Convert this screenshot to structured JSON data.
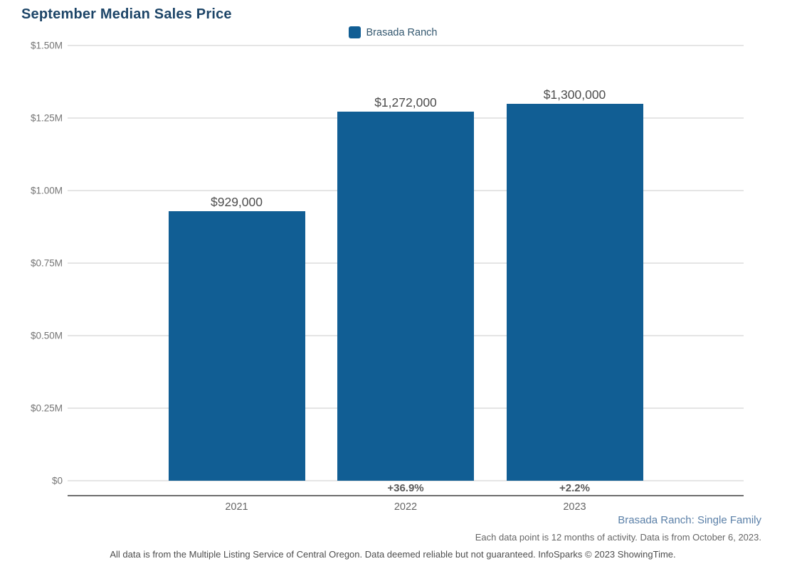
{
  "title": "September Median Sales Price",
  "legend": {
    "label": "Brasada Ranch"
  },
  "chart_data": {
    "type": "bar",
    "title": "September Median Sales Price",
    "categories": [
      "2021",
      "2022",
      "2023"
    ],
    "series": [
      {
        "name": "Brasada Ranch",
        "color": "#115e94",
        "values": [
          929000,
          1272000,
          1300000
        ]
      }
    ],
    "value_labels": [
      "$929,000",
      "$1,272,000",
      "$1,300,000"
    ],
    "pct_change_labels": [
      "",
      "+36.9%",
      "+2.2%"
    ],
    "xlabel": "",
    "ylabel": "",
    "ylim": [
      0,
      1500000
    ],
    "grid": true,
    "legend_position": "top-center",
    "y_ticks": [
      {
        "value": 1500000,
        "label": "$1.50M"
      },
      {
        "value": 1250000,
        "label": "$1.25M"
      },
      {
        "value": 1000000,
        "label": "$1.00M"
      },
      {
        "value": 750000,
        "label": "$0.75M"
      },
      {
        "value": 500000,
        "label": "$0.50M"
      },
      {
        "value": 250000,
        "label": "$0.25M"
      },
      {
        "value": 0,
        "label": "$0"
      }
    ]
  },
  "footer": {
    "series_note": "Brasada Ranch: Single Family",
    "data_note": "Each data point is 12 months of activity. Data is from October 6, 2023.",
    "disclaimer": "All data is from the Multiple Listing Service of Central Oregon. Data deemed reliable but not guaranteed. InfoSparks © 2023 ShowingTime."
  },
  "colors": {
    "bar": "#115e94",
    "title_text": "#1d4568",
    "legend_text": "#33576f",
    "gridline": "#e5e5e5",
    "axis_line": "#6e6e6e",
    "value_label": "#4d4d4d",
    "tick_label": "#757575",
    "pct_label": "#595959",
    "series_note": "#5b80a8",
    "footnote": "#666666",
    "disclaimer": "#4d4d4d"
  }
}
